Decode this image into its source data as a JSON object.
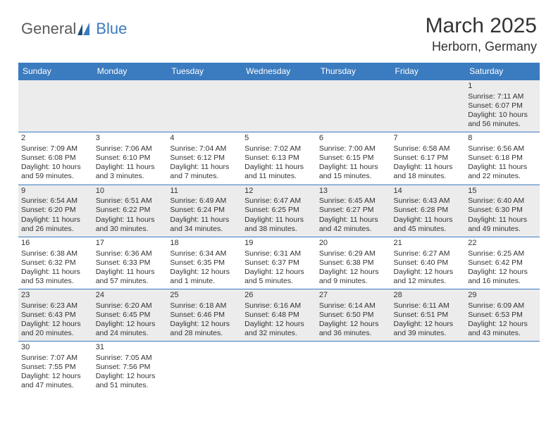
{
  "logo": {
    "text1": "General",
    "text2": "Blue"
  },
  "title": "March 2025",
  "location": "Herborn, Germany",
  "colors": {
    "header_bg": "#3b7bbf",
    "header_fg": "#ffffff",
    "grey_row": "#ececec",
    "border": "#3b7bbf",
    "text": "#333333"
  },
  "weekdays": [
    "Sunday",
    "Monday",
    "Tuesday",
    "Wednesday",
    "Thursday",
    "Friday",
    "Saturday"
  ],
  "weeks": [
    [
      null,
      null,
      null,
      null,
      null,
      null,
      {
        "n": "1",
        "sr": "7:11 AM",
        "ss": "6:07 PM",
        "dl": "10 hours and 56 minutes."
      }
    ],
    [
      {
        "n": "2",
        "sr": "7:09 AM",
        "ss": "6:08 PM",
        "dl": "10 hours and 59 minutes."
      },
      {
        "n": "3",
        "sr": "7:06 AM",
        "ss": "6:10 PM",
        "dl": "11 hours and 3 minutes."
      },
      {
        "n": "4",
        "sr": "7:04 AM",
        "ss": "6:12 PM",
        "dl": "11 hours and 7 minutes."
      },
      {
        "n": "5",
        "sr": "7:02 AM",
        "ss": "6:13 PM",
        "dl": "11 hours and 11 minutes."
      },
      {
        "n": "6",
        "sr": "7:00 AM",
        "ss": "6:15 PM",
        "dl": "11 hours and 15 minutes."
      },
      {
        "n": "7",
        "sr": "6:58 AM",
        "ss": "6:17 PM",
        "dl": "11 hours and 18 minutes."
      },
      {
        "n": "8",
        "sr": "6:56 AM",
        "ss": "6:18 PM",
        "dl": "11 hours and 22 minutes."
      }
    ],
    [
      {
        "n": "9",
        "sr": "6:54 AM",
        "ss": "6:20 PM",
        "dl": "11 hours and 26 minutes."
      },
      {
        "n": "10",
        "sr": "6:51 AM",
        "ss": "6:22 PM",
        "dl": "11 hours and 30 minutes."
      },
      {
        "n": "11",
        "sr": "6:49 AM",
        "ss": "6:24 PM",
        "dl": "11 hours and 34 minutes."
      },
      {
        "n": "12",
        "sr": "6:47 AM",
        "ss": "6:25 PM",
        "dl": "11 hours and 38 minutes."
      },
      {
        "n": "13",
        "sr": "6:45 AM",
        "ss": "6:27 PM",
        "dl": "11 hours and 42 minutes."
      },
      {
        "n": "14",
        "sr": "6:43 AM",
        "ss": "6:28 PM",
        "dl": "11 hours and 45 minutes."
      },
      {
        "n": "15",
        "sr": "6:40 AM",
        "ss": "6:30 PM",
        "dl": "11 hours and 49 minutes."
      }
    ],
    [
      {
        "n": "16",
        "sr": "6:38 AM",
        "ss": "6:32 PM",
        "dl": "11 hours and 53 minutes."
      },
      {
        "n": "17",
        "sr": "6:36 AM",
        "ss": "6:33 PM",
        "dl": "11 hours and 57 minutes."
      },
      {
        "n": "18",
        "sr": "6:34 AM",
        "ss": "6:35 PM",
        "dl": "12 hours and 1 minute."
      },
      {
        "n": "19",
        "sr": "6:31 AM",
        "ss": "6:37 PM",
        "dl": "12 hours and 5 minutes."
      },
      {
        "n": "20",
        "sr": "6:29 AM",
        "ss": "6:38 PM",
        "dl": "12 hours and 9 minutes."
      },
      {
        "n": "21",
        "sr": "6:27 AM",
        "ss": "6:40 PM",
        "dl": "12 hours and 12 minutes."
      },
      {
        "n": "22",
        "sr": "6:25 AM",
        "ss": "6:42 PM",
        "dl": "12 hours and 16 minutes."
      }
    ],
    [
      {
        "n": "23",
        "sr": "6:23 AM",
        "ss": "6:43 PM",
        "dl": "12 hours and 20 minutes."
      },
      {
        "n": "24",
        "sr": "6:20 AM",
        "ss": "6:45 PM",
        "dl": "12 hours and 24 minutes."
      },
      {
        "n": "25",
        "sr": "6:18 AM",
        "ss": "6:46 PM",
        "dl": "12 hours and 28 minutes."
      },
      {
        "n": "26",
        "sr": "6:16 AM",
        "ss": "6:48 PM",
        "dl": "12 hours and 32 minutes."
      },
      {
        "n": "27",
        "sr": "6:14 AM",
        "ss": "6:50 PM",
        "dl": "12 hours and 36 minutes."
      },
      {
        "n": "28",
        "sr": "6:11 AM",
        "ss": "6:51 PM",
        "dl": "12 hours and 39 minutes."
      },
      {
        "n": "29",
        "sr": "6:09 AM",
        "ss": "6:53 PM",
        "dl": "12 hours and 43 minutes."
      }
    ],
    [
      {
        "n": "30",
        "sr": "7:07 AM",
        "ss": "7:55 PM",
        "dl": "12 hours and 47 minutes."
      },
      {
        "n": "31",
        "sr": "7:05 AM",
        "ss": "7:56 PM",
        "dl": "12 hours and 51 minutes."
      },
      null,
      null,
      null,
      null,
      null
    ]
  ],
  "labels": {
    "sunrise": "Sunrise: ",
    "sunset": "Sunset: ",
    "daylight": "Daylight: "
  }
}
